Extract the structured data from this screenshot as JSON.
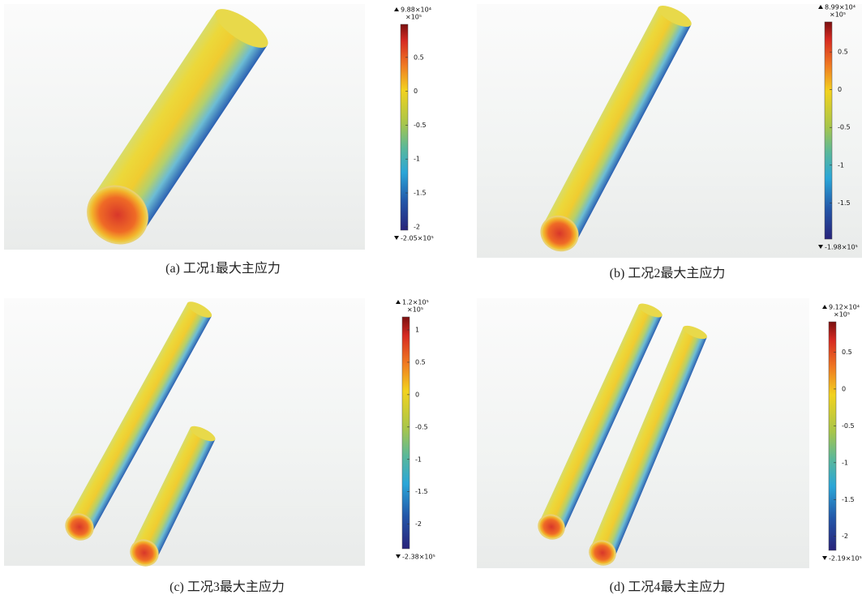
{
  "panels": [
    {
      "caption": "(a) 工况1最大主应力",
      "max_label": "9.88×10⁴",
      "min_label": "-2.05×10⁵",
      "scale_label": "×10⁵",
      "clim": [
        -2.05,
        0.988
      ],
      "ticks": [
        0.5,
        0,
        -0.5,
        -1,
        -1.5,
        -2
      ]
    },
    {
      "caption": "(b) 工况2最大主应力",
      "max_label": "8.99×10⁴",
      "min_label": "-1.98×10⁵",
      "scale_label": "×10⁵",
      "clim": [
        -1.98,
        0.899
      ],
      "ticks": [
        0.5,
        0,
        -0.5,
        -1,
        -1.5
      ]
    },
    {
      "caption": "(c) 工况3最大主应力",
      "max_label": "1.2×10⁵",
      "min_label": "-2.38×10⁵",
      "scale_label": "×10⁵",
      "clim": [
        -2.38,
        1.2
      ],
      "ticks": [
        1,
        0.5,
        0,
        -0.5,
        -1,
        -1.5,
        -2
      ]
    },
    {
      "caption": "(d) 工况4最大主应力",
      "max_label": "9.12×10⁴",
      "min_label": "-2.19×10⁵",
      "scale_label": "×10⁵",
      "clim": [
        -2.19,
        0.912
      ],
      "ticks": [
        0.5,
        0,
        -0.5,
        -1,
        -1.5,
        -2
      ]
    }
  ]
}
